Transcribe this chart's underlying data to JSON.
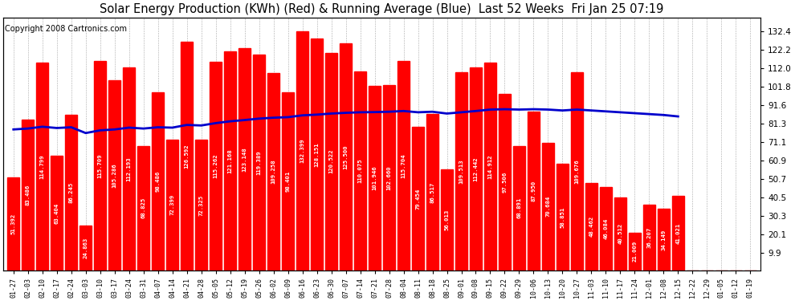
{
  "title": "Solar Energy Production (KWh) (Red) & Running Average (Blue)  Last 52 Weeks  Fri Jan 25 07:19",
  "copyright": "Copyright 2008 Cartronics.com",
  "bar_color": "#FF0000",
  "line_color": "#0000CC",
  "bg_color": "#FFFFFF",
  "plot_bg_color": "#FFFFFF",
  "grid_color": "#AAAAAA",
  "categories": [
    "01-27",
    "02-03",
    "02-10",
    "02-17",
    "02-24",
    "03-03",
    "03-10",
    "03-17",
    "03-24",
    "03-31",
    "04-07",
    "04-14",
    "04-21",
    "04-28",
    "05-05",
    "05-12",
    "05-19",
    "05-26",
    "06-02",
    "06-09",
    "06-16",
    "06-23",
    "06-30",
    "07-07",
    "07-14",
    "07-21",
    "07-28",
    "08-04",
    "08-11",
    "08-18",
    "08-25",
    "09-01",
    "09-08",
    "09-15",
    "09-22",
    "09-29",
    "10-06",
    "10-13",
    "10-20",
    "10-27",
    "11-03",
    "11-10",
    "11-17",
    "11-24",
    "12-01",
    "12-08",
    "12-15",
    "12-22",
    "12-29",
    "01-05",
    "01-12",
    "01-19"
  ],
  "actual_values": [
    51.392,
    83.486,
    114.799,
    63.404,
    86.245,
    24.863,
    115.709,
    105.286,
    112.193,
    68.825,
    98.486,
    72.399,
    126.592,
    72.325,
    115.262,
    121.168,
    123.148,
    119.389,
    109.258,
    98.401,
    132.399,
    128.151,
    120.522,
    125.5,
    110.075,
    101.946,
    102.66,
    115.704,
    79.454,
    86.517,
    56.013,
    109.513,
    112.442,
    114.912,
    97.506,
    68.891,
    87.95,
    70.684,
    58.851,
    109.676,
    48.462,
    46.084,
    40.512,
    21.009,
    36.207,
    34.149,
    41.021,
    0.0,
    0.0,
    0.0,
    0.0,
    0.0
  ],
  "running_avg": [
    78.0,
    78.5,
    79.5,
    78.8,
    79.2,
    76.0,
    77.5,
    78.0,
    79.0,
    78.5,
    79.2,
    79.0,
    80.5,
    80.2,
    81.5,
    82.5,
    83.2,
    84.0,
    84.5,
    84.8,
    85.8,
    86.2,
    86.8,
    87.2,
    87.5,
    87.6,
    87.8,
    88.2,
    87.5,
    87.8,
    86.8,
    87.5,
    88.2,
    89.0,
    89.2,
    89.0,
    89.2,
    89.0,
    88.5,
    89.0,
    88.5,
    88.0,
    87.5,
    87.0,
    86.5,
    86.0,
    85.2
  ],
  "yticks_right": [
    9.9,
    20.1,
    30.3,
    40.5,
    50.7,
    60.9,
    71.1,
    81.3,
    91.6,
    101.8,
    112.0,
    122.2,
    132.4
  ],
  "ymin": 0,
  "ymax": 140,
  "title_fontsize": 10.5,
  "copyright_fontsize": 7,
  "bar_label_fontsize": 5.2,
  "xtick_fontsize": 6,
  "ytick_fontsize": 7.5
}
